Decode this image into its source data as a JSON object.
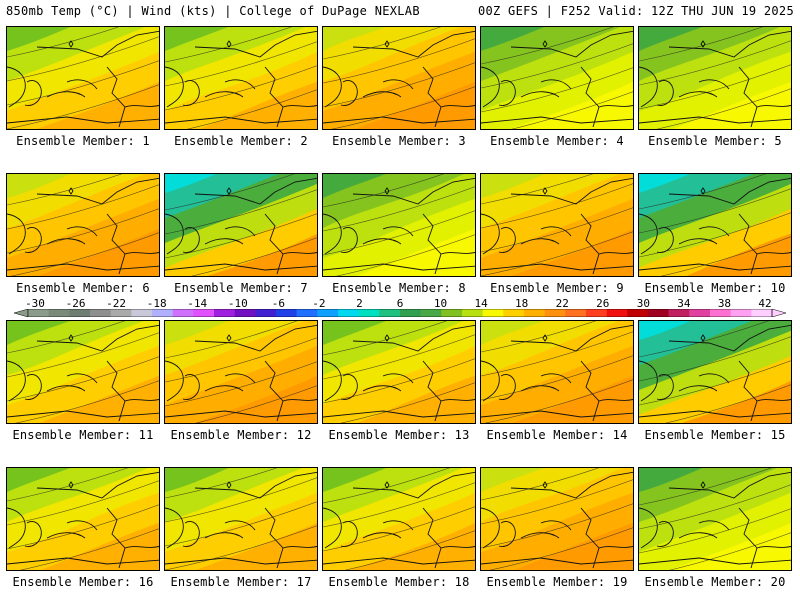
{
  "header": {
    "left_title": "850mb Temp (°C) | Wind (kts) | College of DuPage NEXLAB",
    "right_title": "00Z GEFS | F252 Valid: 12Z THU JUN 19 2025"
  },
  "colorbar": {
    "labels": [
      "-30",
      "-26",
      "-22",
      "-18",
      "-14",
      "-10",
      "-6",
      "-2",
      "2",
      "6",
      "10",
      "14",
      "18",
      "22",
      "26",
      "30",
      "34",
      "38",
      "42"
    ],
    "colors": [
      "#8c9c8c",
      "#7a8a7a",
      "#6e7e72",
      "#8e8e8e",
      "#aaaaaa",
      "#c8c8d8",
      "#b0b0ff",
      "#d070ff",
      "#e050ff",
      "#a020e0",
      "#7010c0",
      "#4020d0",
      "#2040e8",
      "#2070ff",
      "#10a0ff",
      "#00d8f0",
      "#00e0c0",
      "#20c080",
      "#30a050",
      "#48a848",
      "#80c020",
      "#b8e010",
      "#f8f800",
      "#ffd000",
      "#ffb000",
      "#ff9010",
      "#ff7020",
      "#ff4020",
      "#f01010",
      "#c00000",
      "#a00020",
      "#c02060",
      "#e040a0",
      "#ff70d0",
      "#ffa0f0",
      "#ffd0ff"
    ]
  },
  "panels": [
    {
      "label": "Ensemble Member: 1",
      "scheme": "warm"
    },
    {
      "label": "Ensemble Member: 2",
      "scheme": "warm"
    },
    {
      "label": "Ensemble Member: 3",
      "scheme": "hot"
    },
    {
      "label": "Ensemble Member: 4",
      "scheme": "mild"
    },
    {
      "label": "Ensemble Member: 5",
      "scheme": "mild"
    },
    {
      "label": "Ensemble Member: 6",
      "scheme": "hot"
    },
    {
      "label": "Ensemble Member: 7",
      "scheme": "cold"
    },
    {
      "label": "Ensemble Member: 8",
      "scheme": "mild"
    },
    {
      "label": "Ensemble Member: 9",
      "scheme": "hot"
    },
    {
      "label": "Ensemble Member: 10",
      "scheme": "cold"
    },
    {
      "label": "Ensemble Member: 11",
      "scheme": "warm"
    },
    {
      "label": "Ensemble Member: 12",
      "scheme": "hot"
    },
    {
      "label": "Ensemble Member: 13",
      "scheme": "warm"
    },
    {
      "label": "Ensemble Member: 14",
      "scheme": "hot"
    },
    {
      "label": "Ensemble Member: 15",
      "scheme": "cold"
    },
    {
      "label": "Ensemble Member: 16",
      "scheme": "warm"
    },
    {
      "label": "Ensemble Member: 17",
      "scheme": "warm"
    },
    {
      "label": "Ensemble Member: 18",
      "scheme": "warm"
    },
    {
      "label": "Ensemble Member: 19",
      "scheme": "hot"
    },
    {
      "label": "Ensemble Member: 20",
      "scheme": "mild"
    }
  ]
}
